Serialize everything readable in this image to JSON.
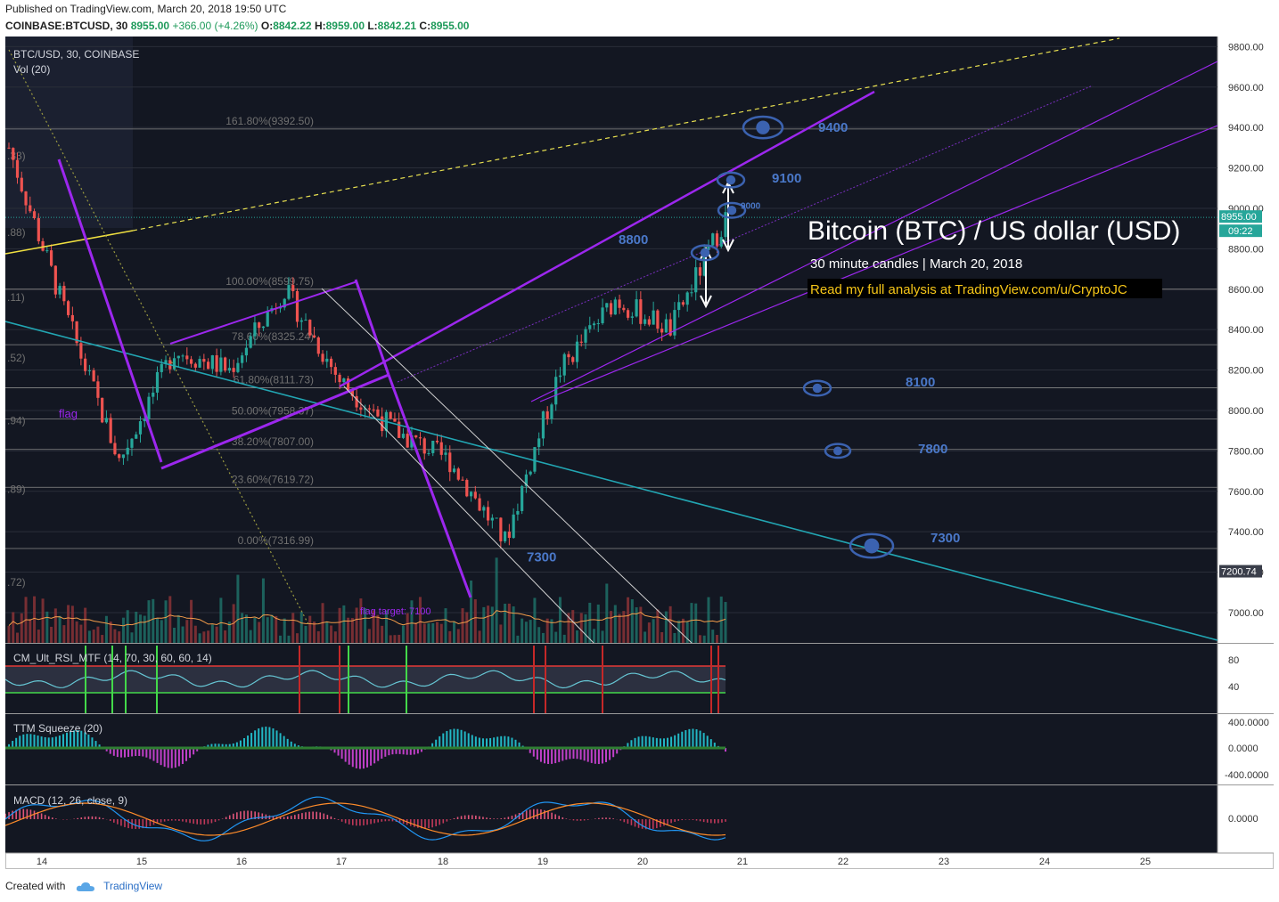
{
  "header": {
    "published": "Published on TradingView.com, March 20, 2018 19:50 UTC",
    "symbol": "COINBASE:BTCUSD, 30",
    "last": "8955.00",
    "change": "+366.00 (+4.26%)",
    "o_label": "O:",
    "o": "8842.22",
    "h_label": "H:",
    "h": "8959.00",
    "l_label": "L:",
    "l": "8842.21",
    "c_label": "C:",
    "c": "8955.00"
  },
  "legend": {
    "title": "BTC/USD, 30, COINBASE",
    "vol": "Vol (20)"
  },
  "annotations": {
    "big_title": "Bitcoin (BTC) / US dollar (USD)",
    "subtitle": "30 minute candles | March 20, 2018",
    "promo": "Read my full analysis at TradingView.com/u/CryptoJC",
    "flag": "flag",
    "flag_target": "flag target: 7100",
    "targets": [
      "9400",
      "9100",
      "8800",
      "8100",
      "7800",
      "7300",
      "7300",
      "9000"
    ]
  },
  "fib_labels": [
    "161.80%(9392.50)",
    "100.00%(8599.75)",
    "78.60%(8325.24)",
    "61.80%(8111.73)",
    "50.00%(7958.37)",
    "38.20%(7807.00)",
    "23.60%(7619.72)",
    "0.00%(7316.99)"
  ],
  "left_cut_labels": [
    ".33)",
    ".88)",
    ".11)",
    ".52)",
    ".94)",
    ".89)",
    ".72)"
  ],
  "price_axis": [
    "9800.00",
    "9600.00",
    "9400.00",
    "9200.00",
    "9000.00",
    "8800.00",
    "8600.00",
    "8400.00",
    "8200.00",
    "8000.00",
    "7800.00",
    "7600.00",
    "7400.00",
    "7200.00",
    "7000.00"
  ],
  "price_tags": {
    "last": "8955.00",
    "countdown": "09:22",
    "marker": "7200.74"
  },
  "time_axis": [
    "14",
    "15",
    "16",
    "17",
    "18",
    "19",
    "20",
    "21",
    "22",
    "23",
    "24",
    "25"
  ],
  "panels": {
    "rsi": {
      "title": "CM_Ult_RSI_MTF (14, 70, 30, 60, 60, 14)",
      "ticks": [
        "80",
        "40"
      ]
    },
    "ttm": {
      "title": "TTM Squeeze (20)",
      "ticks": [
        "400.0000",
        "0.0000",
        "-400.0000"
      ]
    },
    "macd": {
      "title": "MACD (12, 26, close, 9)",
      "ticks": [
        "0.0000"
      ]
    }
  },
  "colors": {
    "background": "#131722",
    "up": "#26a69a",
    "down": "#ef5350",
    "channel": "#9c27ee",
    "trend": "#22a6b3",
    "title_text": "#ffffff",
    "promo_text": "#f5c518",
    "target_text": "#4a78c9"
  },
  "footer": {
    "created": "Created with",
    "brand": "TradingView"
  },
  "chart_data": {
    "type": "line",
    "title": "Bitcoin (BTC) / US dollar (USD)",
    "subtitle": "30 minute candles | March 20, 2018",
    "x": [
      "14",
      "15",
      "15",
      "16",
      "16",
      "17",
      "17",
      "18",
      "18",
      "19",
      "19",
      "20",
      "20",
      "21"
    ],
    "series": [
      {
        "name": "BTC/USD",
        "values": [
          9300,
          8500,
          7750,
          8300,
          8200,
          8600,
          8150,
          7900,
          7750,
          7350,
          8200,
          8550,
          8400,
          8955
        ]
      }
    ],
    "ylim": [
      6850,
      9850
    ],
    "xlabel": "",
    "ylabel": ""
  }
}
